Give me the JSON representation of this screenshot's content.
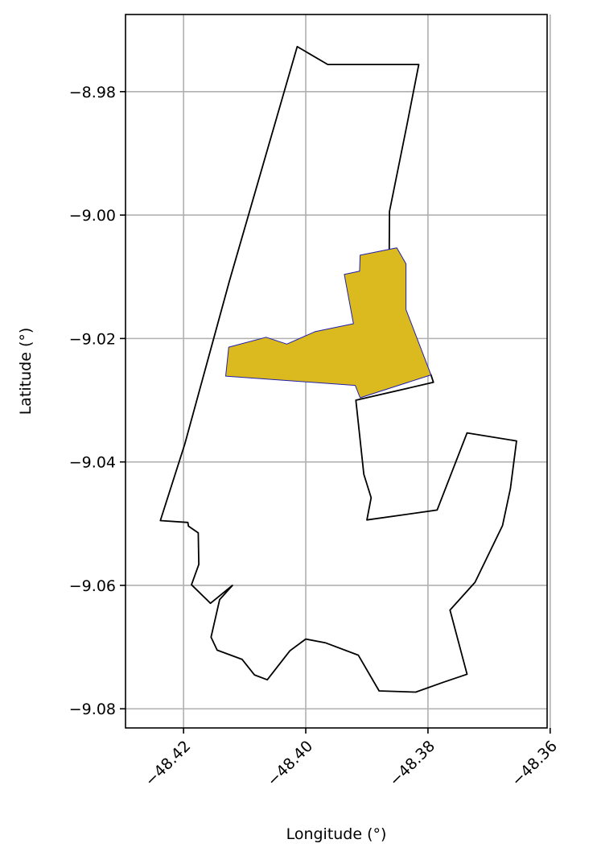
{
  "chart_data": {
    "type": "map",
    "xlabel": "Longitude (°)",
    "ylabel": "Latitude (°)",
    "xlim": [
      -48.4295,
      -48.3605
    ],
    "ylim": [
      -9.0831,
      -8.9675
    ],
    "x_ticks": [
      -48.42,
      -48.4,
      -48.38,
      -48.36
    ],
    "x_tick_labels": [
      "−48.42",
      "−48.40",
      "−48.38",
      "−48.36"
    ],
    "y_ticks": [
      -8.98,
      -9.0,
      -9.02,
      -9.04,
      -9.06,
      -9.08
    ],
    "y_tick_labels": [
      "−8.98",
      "−9.00",
      "−9.02",
      "−9.04",
      "−9.06",
      "−9.08"
    ],
    "grid": true,
    "layers": [
      {
        "role": "boundary-outline",
        "fill": "none",
        "stroke": "#000000",
        "coordinates": [
          [
            -48.4014,
            -8.9727
          ],
          [
            -48.3964,
            -8.9756
          ],
          [
            -48.3815,
            -8.9756
          ],
          [
            -48.3835,
            -8.9857
          ],
          [
            -48.3863,
            -8.9994
          ],
          [
            -48.3864,
            -9.0153
          ],
          [
            -48.3795,
            -9.0259
          ],
          [
            -48.3791,
            -9.0271
          ],
          [
            -48.3918,
            -9.03
          ],
          [
            -48.3905,
            -9.042
          ],
          [
            -48.3893,
            -9.0458
          ],
          [
            -48.39,
            -9.0494
          ],
          [
            -48.3785,
            -9.0478
          ],
          [
            -48.3736,
            -9.0353
          ],
          [
            -48.3655,
            -9.0366
          ],
          [
            -48.3665,
            -9.0443
          ],
          [
            -48.3678,
            -9.0503
          ],
          [
            -48.3723,
            -9.0595
          ],
          [
            -48.3764,
            -9.064
          ],
          [
            -48.3736,
            -9.0744
          ],
          [
            -48.3775,
            -9.0757
          ],
          [
            -48.382,
            -9.0773
          ],
          [
            -48.388,
            -9.0771
          ],
          [
            -48.3914,
            -9.0713
          ],
          [
            -48.3968,
            -9.0693
          ],
          [
            -48.4,
            -9.0687
          ],
          [
            -48.4026,
            -9.0706
          ],
          [
            -48.4063,
            -9.0753
          ],
          [
            -48.4084,
            -9.0745
          ],
          [
            -48.4104,
            -9.072
          ],
          [
            -48.4145,
            -9.0705
          ],
          [
            -48.4155,
            -9.0684
          ],
          [
            -48.4141,
            -9.0623
          ],
          [
            -48.412,
            -9.06
          ],
          [
            -48.4156,
            -9.0629
          ],
          [
            -48.4187,
            -9.0599
          ],
          [
            -48.4175,
            -9.0566
          ],
          [
            -48.4176,
            -9.0515
          ],
          [
            -48.4192,
            -9.0504
          ],
          [
            -48.4193,
            -9.0498
          ],
          [
            -48.4238,
            -9.0495
          ],
          [
            -48.4198,
            -9.0371
          ],
          [
            -48.4125,
            -9.0107
          ],
          [
            -48.4014,
            -8.9727
          ]
        ]
      },
      {
        "role": "highlighted-area",
        "fill": "#dbba1f",
        "stroke": "#1f1faf",
        "coordinates": [
          [
            -48.4131,
            -9.0261
          ],
          [
            -48.4126,
            -9.0214
          ],
          [
            -48.4065,
            -9.0198
          ],
          [
            -48.4031,
            -9.0209
          ],
          [
            -48.3985,
            -9.0189
          ],
          [
            -48.3922,
            -9.0176
          ],
          [
            -48.3937,
            -9.0096
          ],
          [
            -48.3912,
            -9.0091
          ],
          [
            -48.3911,
            -9.0065
          ],
          [
            -48.3851,
            -9.0053
          ],
          [
            -48.3836,
            -9.0079
          ],
          [
            -48.3836,
            -9.0153
          ],
          [
            -48.3795,
            -9.0259
          ],
          [
            -48.3911,
            -9.0296
          ],
          [
            -48.3919,
            -9.0276
          ],
          [
            -48.4131,
            -9.0261
          ]
        ]
      }
    ]
  }
}
